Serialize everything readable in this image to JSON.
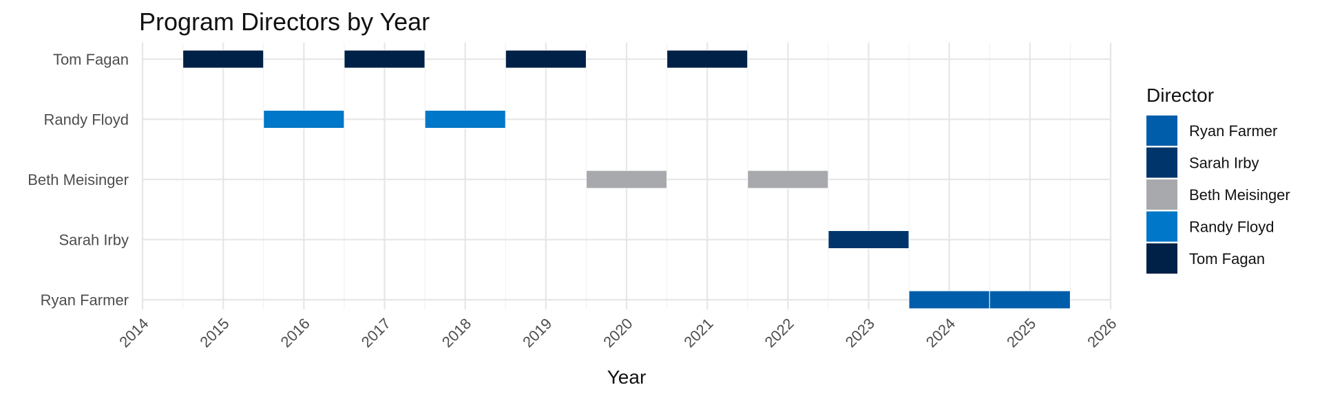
{
  "chart_data": {
    "type": "gantt",
    "title": "Program Directors by Year",
    "xlabel": "Year",
    "ylabel": "",
    "xlim": [
      2014,
      2026
    ],
    "x_ticks": [
      2014,
      2015,
      2016,
      2017,
      2018,
      2019,
      2020,
      2021,
      2022,
      2023,
      2024,
      2025,
      2026
    ],
    "categories": [
      "Tom Fagan",
      "Randy Floyd",
      "Beth Meisinger",
      "Sarah Irby",
      "Ryan Farmer"
    ],
    "legend": {
      "title": "Director",
      "placement": "right",
      "entries": [
        "Ryan Farmer",
        "Sarah Irby",
        "Beth Meisinger",
        "Randy Floyd",
        "Tom Fagan"
      ]
    },
    "colors": {
      "Ryan Farmer": "#005DAA",
      "Sarah Irby": "#00356B",
      "Beth Meisinger": "#A7A9AC",
      "Randy Floyd": "#0077C8",
      "Tom Fagan": "#002147"
    },
    "bars": [
      {
        "director": "Tom Fagan",
        "year": 2015
      },
      {
        "director": "Randy Floyd",
        "year": 2016
      },
      {
        "director": "Tom Fagan",
        "year": 2017
      },
      {
        "director": "Randy Floyd",
        "year": 2018
      },
      {
        "director": "Tom Fagan",
        "year": 2019
      },
      {
        "director": "Beth Meisinger",
        "year": 2020
      },
      {
        "director": "Tom Fagan",
        "year": 2021
      },
      {
        "director": "Beth Meisinger",
        "year": 2022
      },
      {
        "director": "Sarah Irby",
        "year": 2023
      },
      {
        "director": "Ryan Farmer",
        "year": 2024
      },
      {
        "director": "Ryan Farmer",
        "year": 2025
      }
    ],
    "grid": true
  }
}
